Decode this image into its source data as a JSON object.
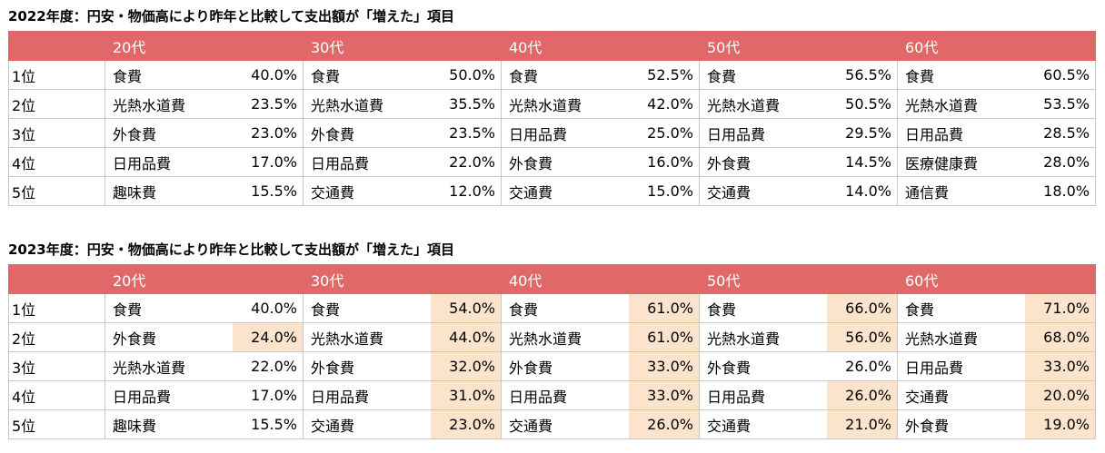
{
  "tables": [
    {
      "title": "2022年度：円安・物価高により昨年と比較して支出額が「増えた」項目",
      "age_groups": [
        "20代",
        "30代",
        "40代",
        "50代",
        "60代"
      ],
      "rows": [
        {
          "rank": "1位",
          "cells": [
            {
              "item": "食費",
              "pct": "40.0%",
              "highlight": false
            },
            {
              "item": "食費",
              "pct": "50.0%",
              "highlight": false
            },
            {
              "item": "食費",
              "pct": "52.5%",
              "highlight": false
            },
            {
              "item": "食費",
              "pct": "56.5%",
              "highlight": false
            },
            {
              "item": "食費",
              "pct": "60.5%",
              "highlight": false
            }
          ]
        },
        {
          "rank": "2位",
          "cells": [
            {
              "item": "光熱水道費",
              "pct": "23.5%",
              "highlight": false
            },
            {
              "item": "光熱水道費",
              "pct": "35.5%",
              "highlight": false
            },
            {
              "item": "光熱水道費",
              "pct": "42.0%",
              "highlight": false
            },
            {
              "item": "光熱水道費",
              "pct": "50.5%",
              "highlight": false
            },
            {
              "item": "光熱水道費",
              "pct": "53.5%",
              "highlight": false
            }
          ]
        },
        {
          "rank": "3位",
          "cells": [
            {
              "item": "外食費",
              "pct": "23.0%",
              "highlight": false
            },
            {
              "item": "外食費",
              "pct": "23.5%",
              "highlight": false
            },
            {
              "item": "日用品費",
              "pct": "25.0%",
              "highlight": false
            },
            {
              "item": "日用品費",
              "pct": "29.5%",
              "highlight": false
            },
            {
              "item": "日用品費",
              "pct": "28.5%",
              "highlight": false
            }
          ]
        },
        {
          "rank": "4位",
          "cells": [
            {
              "item": "日用品費",
              "pct": "17.0%",
              "highlight": false
            },
            {
              "item": "日用品費",
              "pct": "22.0%",
              "highlight": false
            },
            {
              "item": "外食費",
              "pct": "16.0%",
              "highlight": false
            },
            {
              "item": "外食費",
              "pct": "14.5%",
              "highlight": false
            },
            {
              "item": "医療健康費",
              "pct": "28.0%",
              "highlight": false
            }
          ]
        },
        {
          "rank": "5位",
          "cells": [
            {
              "item": "趣味費",
              "pct": "15.5%",
              "highlight": false
            },
            {
              "item": "交通費",
              "pct": "12.0%",
              "highlight": false
            },
            {
              "item": "交通費",
              "pct": "15.0%",
              "highlight": false
            },
            {
              "item": "交通費",
              "pct": "14.0%",
              "highlight": false
            },
            {
              "item": "通信費",
              "pct": "18.0%",
              "highlight": false
            }
          ]
        }
      ]
    },
    {
      "title": "2023年度：円安・物価高により昨年と比較して支出額が「増えた」項目",
      "age_groups": [
        "20代",
        "30代",
        "40代",
        "50代",
        "60代"
      ],
      "rows": [
        {
          "rank": "1位",
          "cells": [
            {
              "item": "食費",
              "pct": "40.0%",
              "highlight": false
            },
            {
              "item": "食費",
              "pct": "54.0%",
              "highlight": true
            },
            {
              "item": "食費",
              "pct": "61.0%",
              "highlight": true
            },
            {
              "item": "食費",
              "pct": "66.0%",
              "highlight": true
            },
            {
              "item": "食費",
              "pct": "71.0%",
              "highlight": true
            }
          ]
        },
        {
          "rank": "2位",
          "cells": [
            {
              "item": "外食費",
              "pct": "24.0%",
              "highlight": true
            },
            {
              "item": "光熱水道費",
              "pct": "44.0%",
              "highlight": true
            },
            {
              "item": "光熱水道費",
              "pct": "61.0%",
              "highlight": true
            },
            {
              "item": "光熱水道費",
              "pct": "56.0%",
              "highlight": true
            },
            {
              "item": "光熱水道費",
              "pct": "68.0%",
              "highlight": true
            }
          ]
        },
        {
          "rank": "3位",
          "cells": [
            {
              "item": "光熱水道費",
              "pct": "22.0%",
              "highlight": false
            },
            {
              "item": "外食費",
              "pct": "32.0%",
              "highlight": true
            },
            {
              "item": "外食費",
              "pct": "33.0%",
              "highlight": true
            },
            {
              "item": "外食費",
              "pct": "26.0%",
              "highlight": false
            },
            {
              "item": "日用品費",
              "pct": "33.0%",
              "highlight": true
            }
          ]
        },
        {
          "rank": "4位",
          "cells": [
            {
              "item": "日用品費",
              "pct": "17.0%",
              "highlight": false
            },
            {
              "item": "日用品費",
              "pct": "31.0%",
              "highlight": true
            },
            {
              "item": "日用品費",
              "pct": "33.0%",
              "highlight": true
            },
            {
              "item": "日用品費",
              "pct": "26.0%",
              "highlight": true
            },
            {
              "item": "交通費",
              "pct": "20.0%",
              "highlight": true
            }
          ]
        },
        {
          "rank": "5位",
          "cells": [
            {
              "item": "趣味費",
              "pct": "15.5%",
              "highlight": false
            },
            {
              "item": "交通費",
              "pct": "23.0%",
              "highlight": true
            },
            {
              "item": "交通費",
              "pct": "26.0%",
              "highlight": true
            },
            {
              "item": "交通費",
              "pct": "21.0%",
              "highlight": true
            },
            {
              "item": "外食費",
              "pct": "19.0%",
              "highlight": true
            }
          ]
        }
      ]
    }
  ],
  "colors": {
    "header_bg": "#e06868",
    "header_text": "#ffffff",
    "highlight_bg": "#fbe3cc",
    "grid": "#c8c8c8"
  }
}
